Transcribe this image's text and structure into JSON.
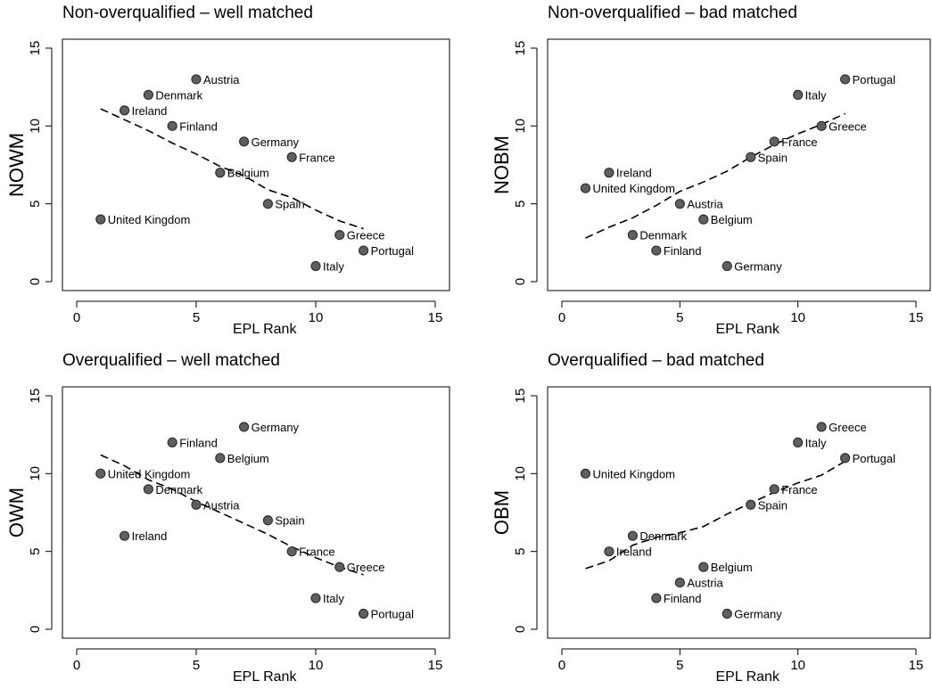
{
  "chart_data": [
    {
      "type": "scatter",
      "title": "Non-overqualified – well matched",
      "xlabel": "EPL Rank",
      "ylabel": "NOWM",
      "xlim": [
        0,
        15
      ],
      "ylim": [
        0,
        15
      ],
      "xticks": [
        0,
        5,
        10,
        15
      ],
      "yticks": [
        0,
        5,
        10,
        15
      ],
      "grid": false,
      "points": [
        {
          "label": "Austria",
          "x": 5,
          "y": 13
        },
        {
          "label": "Denmark",
          "x": 3,
          "y": 12
        },
        {
          "label": "Ireland",
          "x": 2,
          "y": 11
        },
        {
          "label": "Finland",
          "x": 4,
          "y": 10
        },
        {
          "label": "Germany",
          "x": 7,
          "y": 9
        },
        {
          "label": "France",
          "x": 9,
          "y": 8
        },
        {
          "label": "Belgium",
          "x": 6,
          "y": 7
        },
        {
          "label": "Spain",
          "x": 8,
          "y": 5
        },
        {
          "label": "United Kingdom",
          "x": 1,
          "y": 4
        },
        {
          "label": "Greece",
          "x": 11,
          "y": 3
        },
        {
          "label": "Portugal",
          "x": 12,
          "y": 2
        },
        {
          "label": "Italy",
          "x": 10,
          "y": 1
        }
      ],
      "trend": [
        [
          1,
          11.1
        ],
        [
          2,
          10.4
        ],
        [
          3,
          9.7
        ],
        [
          4,
          8.9
        ],
        [
          5,
          8.2
        ],
        [
          6,
          7.4
        ],
        [
          7,
          6.8
        ],
        [
          8,
          5.9
        ],
        [
          9,
          5.4
        ],
        [
          10,
          4.6
        ],
        [
          11,
          3.9
        ],
        [
          12,
          3.4
        ]
      ]
    },
    {
      "type": "scatter",
      "title": "Non-overqualified – bad matched",
      "xlabel": "EPL Rank",
      "ylabel": "NOBM",
      "xlim": [
        0,
        15
      ],
      "ylim": [
        0,
        15
      ],
      "xticks": [
        0,
        5,
        10,
        15
      ],
      "yticks": [
        0,
        5,
        10,
        15
      ],
      "grid": false,
      "points": [
        {
          "label": "Portugal",
          "x": 12,
          "y": 13
        },
        {
          "label": "Italy",
          "x": 10,
          "y": 12
        },
        {
          "label": "Greece",
          "x": 11,
          "y": 10
        },
        {
          "label": "France",
          "x": 9,
          "y": 9
        },
        {
          "label": "Spain",
          "x": 8,
          "y": 8
        },
        {
          "label": "Ireland",
          "x": 2,
          "y": 7
        },
        {
          "label": "United Kingdom",
          "x": 1,
          "y": 6
        },
        {
          "label": "Austria",
          "x": 5,
          "y": 5
        },
        {
          "label": "Belgium",
          "x": 6,
          "y": 4
        },
        {
          "label": "Denmark",
          "x": 3,
          "y": 3
        },
        {
          "label": "Finland",
          "x": 4,
          "y": 2
        },
        {
          "label": "Germany",
          "x": 7,
          "y": 1
        }
      ],
      "trend": [
        [
          1,
          2.8
        ],
        [
          2,
          3.5
        ],
        [
          3,
          4.1
        ],
        [
          4,
          4.9
        ],
        [
          5,
          5.8
        ],
        [
          6,
          6.4
        ],
        [
          7,
          7.1
        ],
        [
          8,
          8.0
        ],
        [
          9,
          8.8
        ],
        [
          10,
          9.5
        ],
        [
          11,
          10.1
        ],
        [
          12,
          10.8
        ]
      ]
    },
    {
      "type": "scatter",
      "title": "Overqualified – well matched",
      "xlabel": "EPL Rank",
      "ylabel": "OWM",
      "xlim": [
        0,
        15
      ],
      "ylim": [
        0,
        15
      ],
      "xticks": [
        0,
        5,
        10,
        15
      ],
      "yticks": [
        0,
        5,
        10,
        15
      ],
      "grid": false,
      "points": [
        {
          "label": "Germany",
          "x": 7,
          "y": 13
        },
        {
          "label": "Finland",
          "x": 4,
          "y": 12
        },
        {
          "label": "Belgium",
          "x": 6,
          "y": 11
        },
        {
          "label": "United Kingdom",
          "x": 1,
          "y": 10
        },
        {
          "label": "Denmark",
          "x": 3,
          "y": 9
        },
        {
          "label": "Austria",
          "x": 5,
          "y": 8
        },
        {
          "label": "Spain",
          "x": 8,
          "y": 7
        },
        {
          "label": "Ireland",
          "x": 2,
          "y": 6
        },
        {
          "label": "France",
          "x": 9,
          "y": 5
        },
        {
          "label": "Greece",
          "x": 11,
          "y": 4
        },
        {
          "label": "Italy",
          "x": 10,
          "y": 2
        },
        {
          "label": "Portugal",
          "x": 12,
          "y": 1
        }
      ],
      "trend": [
        [
          1,
          11.2
        ],
        [
          2,
          10.5
        ],
        [
          3,
          9.6
        ],
        [
          4,
          9.0
        ],
        [
          5,
          8.2
        ],
        [
          6,
          7.5
        ],
        [
          7,
          6.8
        ],
        [
          8,
          6.1
        ],
        [
          9,
          5.3
        ],
        [
          10,
          4.6
        ],
        [
          11,
          4.0
        ],
        [
          12,
          3.5
        ]
      ]
    },
    {
      "type": "scatter",
      "title": "Overqualified – bad matched",
      "xlabel": "EPL Rank",
      "ylabel": "OBM",
      "xlim": [
        0,
        15
      ],
      "ylim": [
        0,
        15
      ],
      "xticks": [
        0,
        5,
        10,
        15
      ],
      "yticks": [
        0,
        5,
        10,
        15
      ],
      "grid": false,
      "points": [
        {
          "label": "Greece",
          "x": 11,
          "y": 13
        },
        {
          "label": "Italy",
          "x": 10,
          "y": 12
        },
        {
          "label": "Portugal",
          "x": 12,
          "y": 11
        },
        {
          "label": "United Kingdom",
          "x": 1,
          "y": 10
        },
        {
          "label": "France",
          "x": 9,
          "y": 9
        },
        {
          "label": "Spain",
          "x": 8,
          "y": 8
        },
        {
          "label": "Denmark",
          "x": 3,
          "y": 6
        },
        {
          "label": "Ireland",
          "x": 2,
          "y": 5
        },
        {
          "label": "Belgium",
          "x": 6,
          "y": 4
        },
        {
          "label": "Austria",
          "x": 5,
          "y": 3
        },
        {
          "label": "Finland",
          "x": 4,
          "y": 2
        },
        {
          "label": "Germany",
          "x": 7,
          "y": 1
        }
      ],
      "trend": [
        [
          1,
          3.9
        ],
        [
          2,
          4.4
        ],
        [
          3,
          5.4
        ],
        [
          4,
          5.9
        ],
        [
          5,
          6.2
        ],
        [
          6,
          6.6
        ],
        [
          7,
          7.4
        ],
        [
          8,
          8.1
        ],
        [
          9,
          8.8
        ],
        [
          10,
          9.4
        ],
        [
          11,
          9.9
        ],
        [
          12,
          10.8
        ]
      ]
    }
  ]
}
